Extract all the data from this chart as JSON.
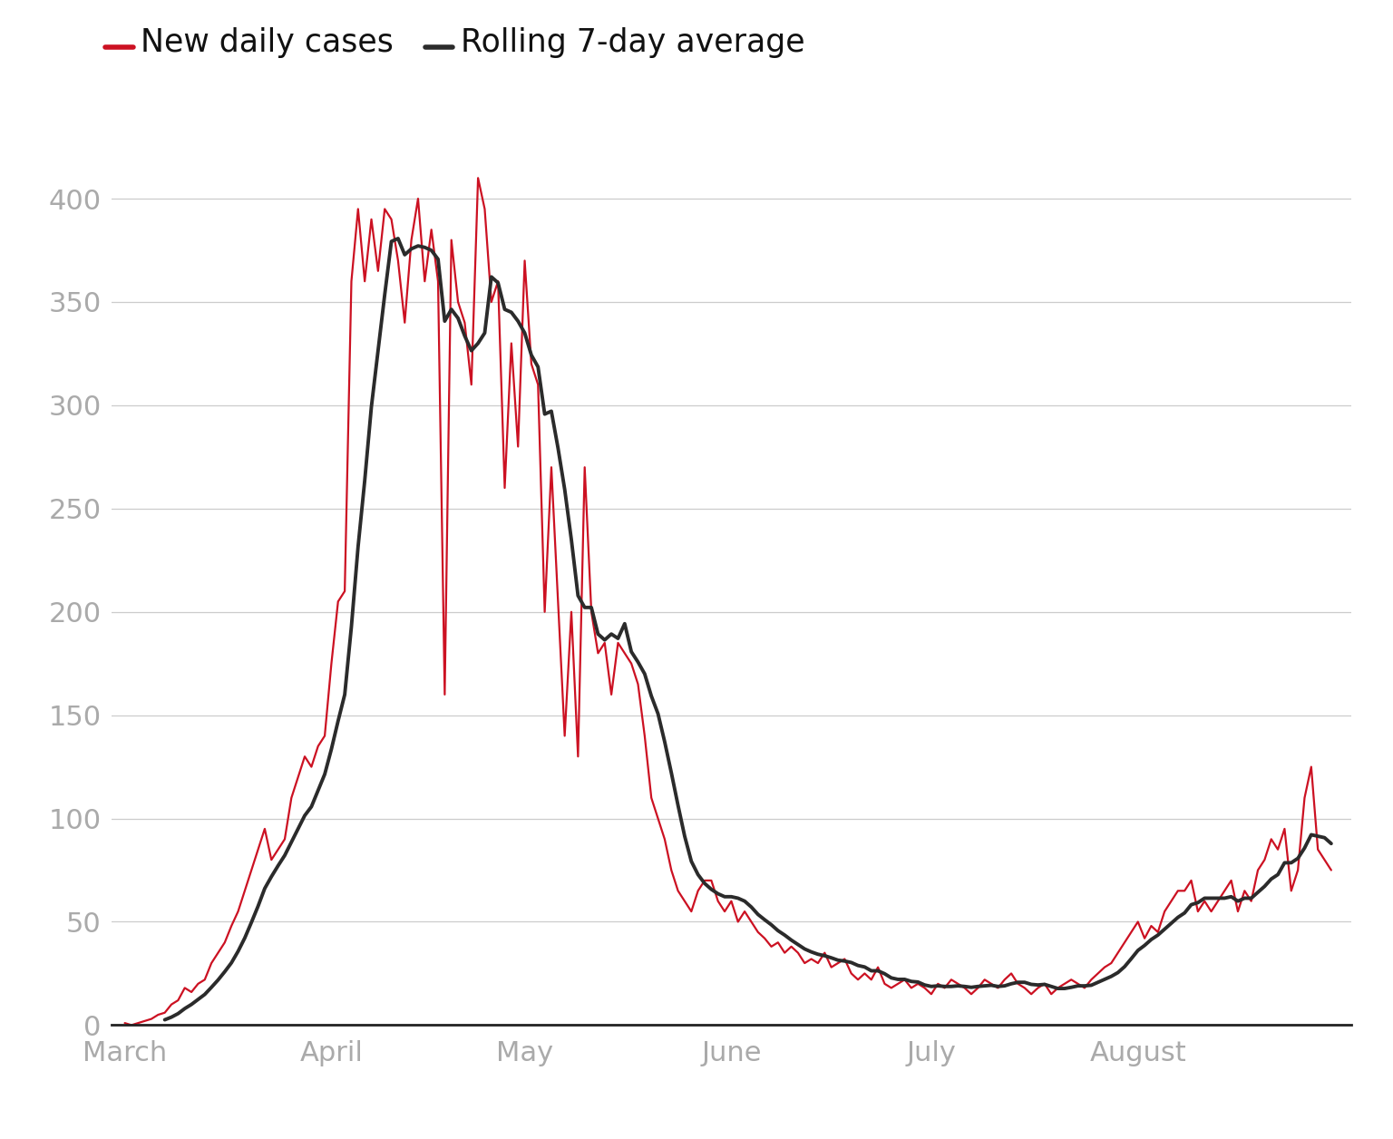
{
  "legend_daily": "New daily cases",
  "legend_rolling": "Rolling 7-day average",
  "daily_color": "#cc1122",
  "rolling_color": "#2b2b2b",
  "background_color": "#ffffff",
  "grid_color": "#cccccc",
  "ylim": [
    0,
    430
  ],
  "yticks": [
    0,
    50,
    100,
    150,
    200,
    250,
    300,
    350,
    400
  ],
  "tick_color": "#aaaaaa",
  "daily_lw": 1.6,
  "rolling_lw": 2.8,
  "daily_cases": [
    1,
    0,
    1,
    2,
    3,
    5,
    6,
    10,
    12,
    18,
    16,
    20,
    22,
    30,
    35,
    40,
    48,
    55,
    65,
    75,
    85,
    95,
    80,
    85,
    90,
    110,
    120,
    130,
    125,
    135,
    140,
    175,
    205,
    210,
    360,
    395,
    360,
    390,
    365,
    395,
    390,
    370,
    340,
    380,
    400,
    360,
    385,
    360,
    160,
    380,
    350,
    340,
    310,
    410,
    395,
    350,
    360,
    260,
    330,
    280,
    370,
    320,
    310,
    200,
    270,
    205,
    140,
    200,
    130,
    270,
    200,
    180,
    185,
    160,
    185,
    180,
    175,
    165,
    140,
    110,
    100,
    90,
    75,
    65,
    60,
    55,
    65,
    70,
    70,
    60,
    55,
    60,
    50,
    55,
    50,
    45,
    42,
    38,
    40,
    35,
    38,
    35,
    30,
    32,
    30,
    35,
    28,
    30,
    32,
    25,
    22,
    25,
    22,
    28,
    20,
    18,
    20,
    22,
    18,
    20,
    18,
    15,
    20,
    18,
    22,
    20,
    18,
    15,
    18,
    22,
    20,
    18,
    22,
    25,
    20,
    18,
    15,
    18,
    20,
    15,
    18,
    20,
    22,
    20,
    18,
    22,
    25,
    28,
    30,
    35,
    40,
    45,
    50,
    42,
    48,
    45,
    55,
    60,
    65,
    65,
    70,
    55,
    60,
    55,
    60,
    65,
    70,
    55,
    65,
    60,
    75,
    80,
    90,
    85,
    95,
    65,
    75,
    110,
    125,
    85,
    80,
    75
  ],
  "month_tick_positions": [
    0,
    31,
    60,
    91,
    121,
    152
  ],
  "month_labels": [
    "March",
    "April",
    "May",
    "June",
    "July",
    "August"
  ]
}
